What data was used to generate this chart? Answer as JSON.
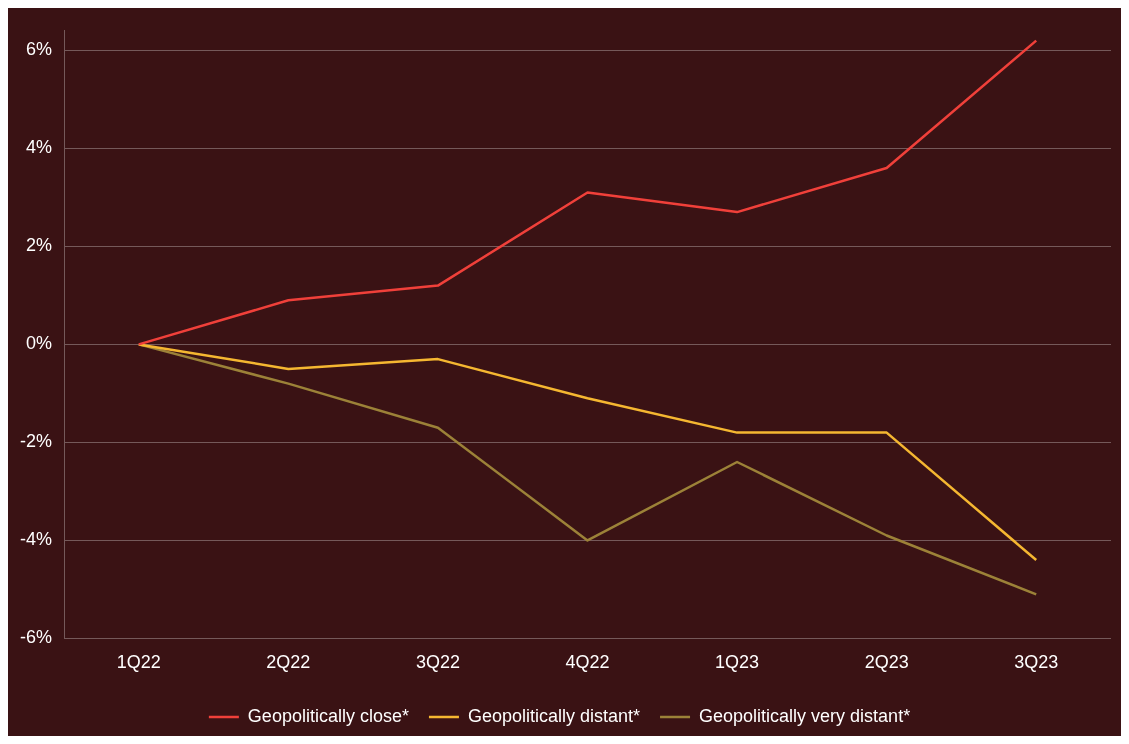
{
  "chart_data": {
    "type": "line",
    "categories": [
      "1Q22",
      "2Q22",
      "3Q22",
      "4Q22",
      "1Q23",
      "2Q23",
      "3Q23"
    ],
    "series": [
      {
        "name": "Geopolitically close*",
        "color": "#f0403a",
        "values": [
          0,
          0.9,
          1.2,
          3.1,
          2.7,
          3.6,
          6.2
        ]
      },
      {
        "name": "Geopolitically distant*",
        "color": "#f5b731",
        "values": [
          0,
          -0.5,
          -0.3,
          -1.1,
          -1.8,
          -1.8,
          -4.4
        ]
      },
      {
        "name": "Geopolitically very distant*",
        "color": "#9c8238",
        "values": [
          0,
          -0.8,
          -1.7,
          -4.0,
          -2.4,
          -3.9,
          -5.1
        ]
      }
    ],
    "ylim": [
      -6,
      6.4
    ],
    "yticks": [
      {
        "value": -6,
        "label": "-6%"
      },
      {
        "value": -4,
        "label": "-4%"
      },
      {
        "value": -2,
        "label": "-2%"
      },
      {
        "value": 0,
        "label": "0%"
      },
      {
        "value": 2,
        "label": "2%"
      },
      {
        "value": 4,
        "label": "4%"
      },
      {
        "value": 6,
        "label": "6%"
      }
    ],
    "grid": "y",
    "legend": "bottom",
    "marker": "none",
    "line_style": "solid"
  }
}
